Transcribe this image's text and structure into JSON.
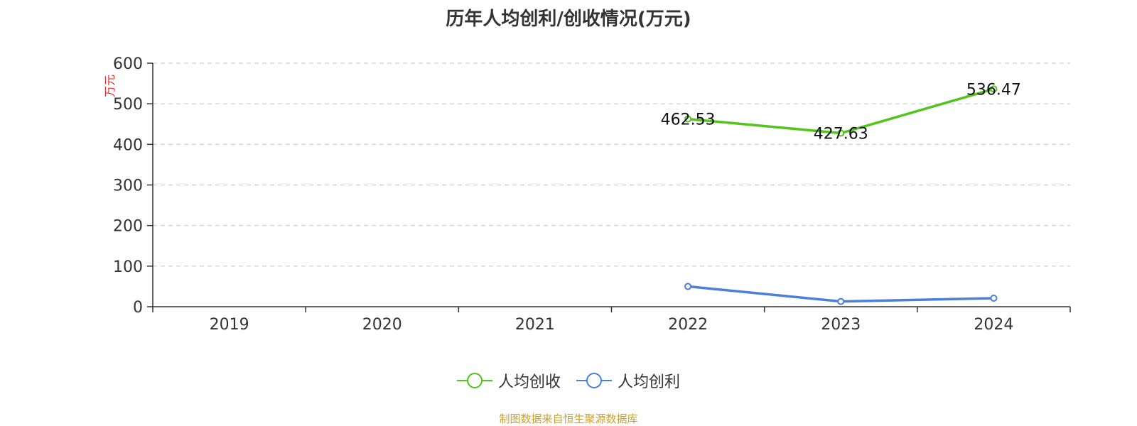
{
  "chart_data": {
    "type": "line",
    "title": "历年人均创利/创收情况(万元)",
    "ylabel": "万元",
    "xlabel": "",
    "categories": [
      "2019",
      "2020",
      "2021",
      "2022",
      "2023",
      "2024"
    ],
    "ylim": [
      0,
      600
    ],
    "yticks": [
      0,
      100,
      200,
      300,
      400,
      500,
      600
    ],
    "grid": true,
    "legend_position": "bottom",
    "series": [
      {
        "name": "人均创收",
        "color": "#52c41a",
        "values": [
          null,
          null,
          null,
          462.53,
          427.63,
          536.47
        ],
        "labels": [
          "",
          "",
          "",
          "462.53",
          "427.63",
          "536.47"
        ]
      },
      {
        "name": "人均创利",
        "color": "#4a7fdb",
        "values": [
          null,
          null,
          null,
          50,
          13,
          21
        ],
        "labels": [
          "",
          "",
          "",
          "",
          "",
          ""
        ]
      }
    ]
  },
  "footer": {
    "source": "制图数据来自恒生聚源数据库"
  },
  "colors": {
    "axis": "#333333",
    "grid": "#cccccc",
    "ylabel": "#e03030",
    "source": "#c8a030"
  }
}
